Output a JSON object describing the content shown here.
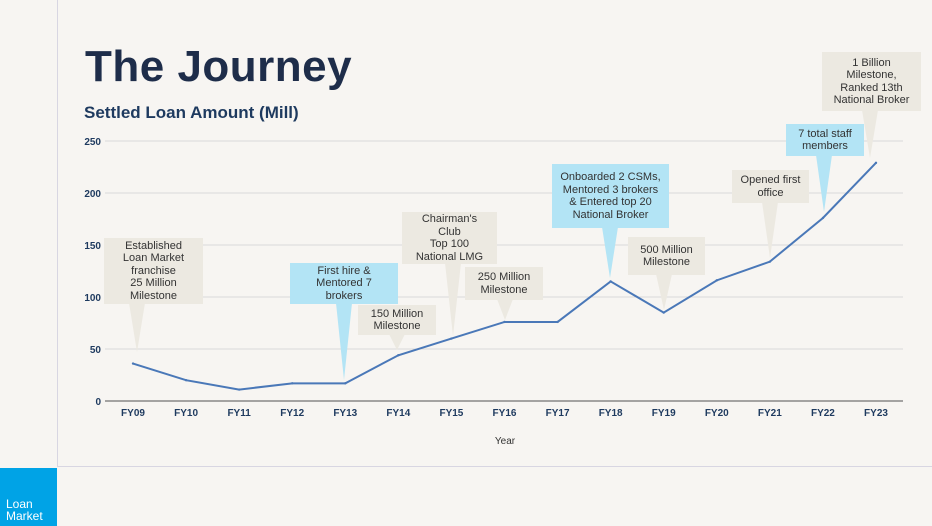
{
  "title": "The Journey",
  "logo": "Loan Market",
  "chart_data": {
    "type": "line",
    "title": "Settled Loan Amount (Mill)",
    "xlabel": "Year",
    "ylabel": "",
    "categories": [
      "FY09",
      "FY10",
      "FY11",
      "FY12",
      "FY13",
      "FY14",
      "FY15",
      "FY16",
      "FY17",
      "FY18",
      "FY19",
      "FY20",
      "FY21",
      "FY22",
      "FY23"
    ],
    "values": [
      36,
      20,
      11,
      17,
      17,
      44,
      60,
      76,
      76,
      115,
      85,
      116,
      134,
      176,
      229
    ],
    "ylim": [
      0,
      250
    ],
    "yticks": [
      "0",
      "50",
      "100",
      "150",
      "200",
      "250"
    ],
    "grid": true,
    "line_color": "#4a78b8",
    "annotations": [
      {
        "category": "FY09",
        "text": "Established\nLoan Market\nfranchise\n25 Million\nMilestone",
        "style": "beige"
      },
      {
        "category": "FY13",
        "text": "First hire &\nMentored 7\nbrokers",
        "style": "blue"
      },
      {
        "category": "FY14",
        "text": "150 Million\nMilestone",
        "style": "beige"
      },
      {
        "category": "FY15",
        "text": "Chairman's\nClub\nTop 100\nNational LMG",
        "style": "beige"
      },
      {
        "category": "FY16",
        "text": "250 Million\nMilestone",
        "style": "beige"
      },
      {
        "category": "FY18",
        "text": "Onboarded 2 CSMs,\nMentored 3 brokers\n& Entered top 20\nNational Broker",
        "style": "blue"
      },
      {
        "category": "FY19",
        "text": "500 Million\nMilestone",
        "style": "beige"
      },
      {
        "category": "FY21",
        "text": "Opened first\noffice",
        "style": "beige"
      },
      {
        "category": "FY22",
        "text": "7 total staff\nmembers",
        "style": "blue"
      },
      {
        "category": "FY23",
        "text": "1 Billion\nMilestone,\nRanked 13th\nNational Broker",
        "style": "beige"
      }
    ]
  }
}
